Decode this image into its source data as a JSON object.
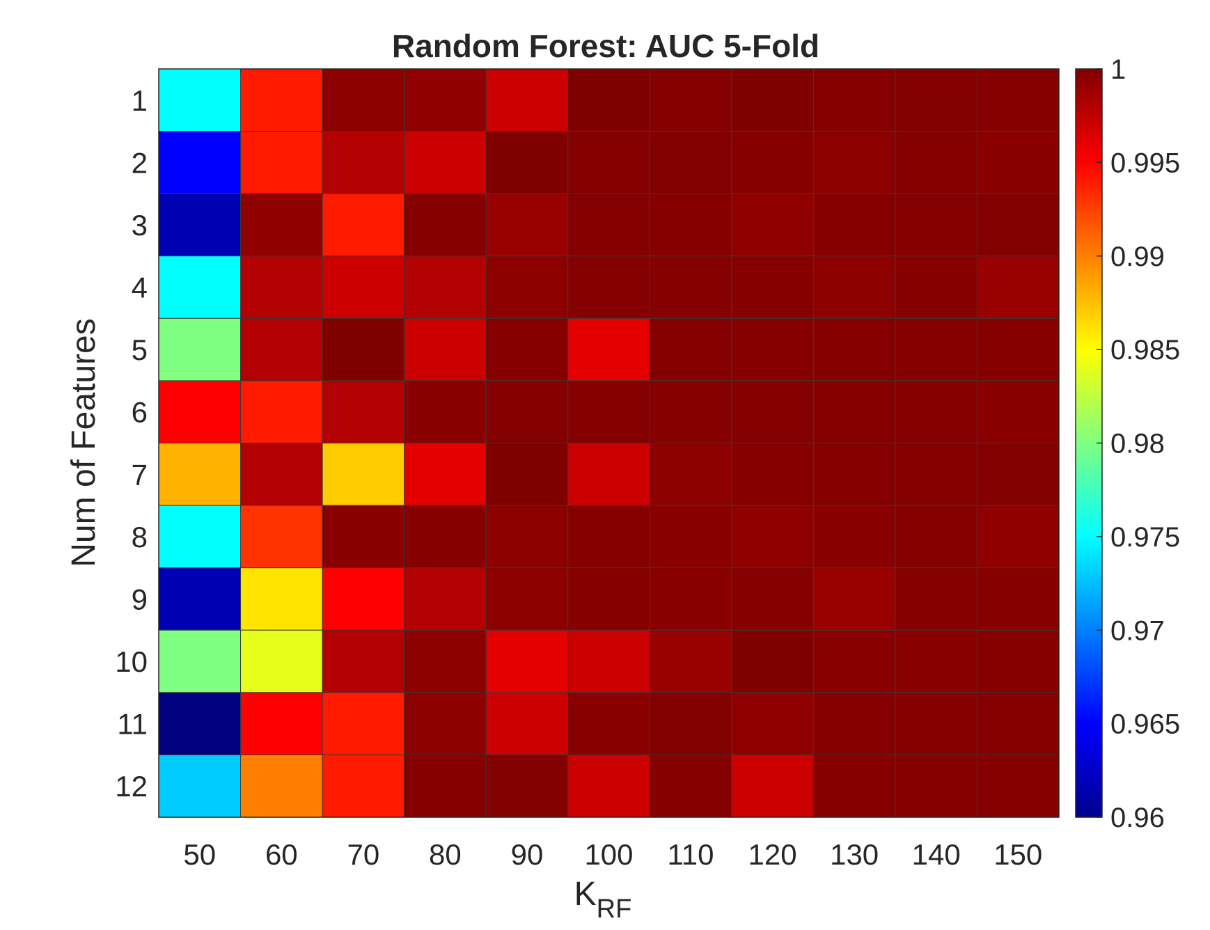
{
  "chart_data": {
    "type": "heatmap",
    "title": "Random Forest: AUC 5-Fold",
    "xlabel": "K",
    "xlabel_subscript": "RF",
    "ylabel": "Num of Features",
    "x_categories": [
      "50",
      "60",
      "70",
      "80",
      "90",
      "100",
      "110",
      "120",
      "130",
      "140",
      "150"
    ],
    "y_categories": [
      "1",
      "2",
      "3",
      "4",
      "5",
      "6",
      "7",
      "8",
      "9",
      "10",
      "11",
      "12"
    ],
    "values": [
      [
        0.975,
        0.994,
        0.9995,
        0.9993,
        0.997,
        1.0,
        0.9998,
        1.0,
        0.9998,
        0.9999,
        0.9998
      ],
      [
        0.965,
        0.994,
        0.998,
        0.997,
        1.0,
        0.9998,
        0.9999,
        0.9997,
        0.9995,
        0.9998,
        0.9996
      ],
      [
        0.962,
        0.9993,
        0.994,
        0.9997,
        0.999,
        0.9998,
        0.9997,
        0.9993,
        0.9997,
        0.9998,
        0.9999
      ],
      [
        0.975,
        0.998,
        0.997,
        0.998,
        0.9995,
        0.9998,
        0.9998,
        0.9997,
        0.9995,
        0.9997,
        0.999
      ],
      [
        0.98,
        0.998,
        1.0,
        0.997,
        0.9997,
        0.996,
        0.9998,
        0.9997,
        0.9998,
        0.9998,
        0.9997
      ],
      [
        0.995,
        0.994,
        0.998,
        0.9996,
        0.9998,
        0.9998,
        0.9998,
        0.9998,
        0.9997,
        0.9998,
        0.9996
      ],
      [
        0.988,
        0.998,
        0.987,
        0.996,
        1.0,
        0.997,
        0.9995,
        0.9997,
        0.9998,
        0.9998,
        0.9999
      ],
      [
        0.975,
        0.993,
        0.9996,
        0.9997,
        0.9995,
        0.9997,
        0.9996,
        0.9993,
        0.9996,
        0.9997,
        0.9993
      ],
      [
        0.962,
        0.986,
        0.995,
        0.998,
        0.9995,
        0.9997,
        0.9996,
        0.9998,
        0.999,
        0.9998,
        0.9997
      ],
      [
        0.98,
        0.984,
        0.998,
        0.9995,
        0.996,
        0.997,
        0.999,
        1.0,
        0.9996,
        0.9996,
        0.9997
      ],
      [
        0.96,
        0.995,
        0.994,
        0.9995,
        0.997,
        0.9996,
        0.9999,
        0.9993,
        0.9998,
        0.9997,
        0.9998
      ],
      [
        0.973,
        0.99,
        0.994,
        0.9998,
        0.9999,
        0.997,
        0.9998,
        0.997,
        0.9997,
        0.9998,
        0.9998
      ]
    ],
    "colormap": "jet",
    "clim": [
      0.96,
      1
    ],
    "colorbar_ticks": [
      "0.96",
      "0.965",
      "0.97",
      "0.975",
      "0.98",
      "0.985",
      "0.99",
      "0.995",
      "1"
    ],
    "colorbar_tick_values": [
      0.96,
      0.965,
      0.97,
      0.975,
      0.98,
      0.985,
      0.99,
      0.995,
      1.0
    ],
    "grid": false,
    "colorbar_position": "right"
  }
}
